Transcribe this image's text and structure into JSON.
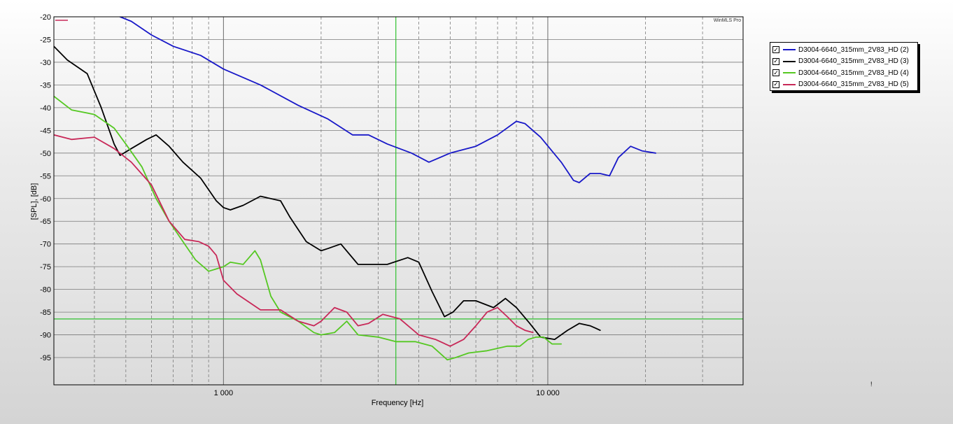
{
  "chart_data": {
    "type": "line",
    "title": "",
    "watermark": "WinMLS Pro",
    "xlabel": "Frequency [Hz]",
    "ylabel": "[SPL], [dB]",
    "xscale": "log",
    "xlim": [
      300,
      40000
    ],
    "ylim": [
      -101,
      -20
    ],
    "x_ticks": [
      {
        "value": 1000,
        "label": "1 000"
      },
      {
        "value": 10000,
        "label": "10 000"
      }
    ],
    "y_ticks": [
      -20,
      -25,
      -30,
      -35,
      -40,
      -45,
      -50,
      -55,
      -60,
      -65,
      -70,
      -75,
      -80,
      -85,
      -90,
      -95
    ],
    "grid": true,
    "cursor": {
      "x": 3400,
      "y": -86.5,
      "color": "#2ec12e"
    },
    "legend_position": "right",
    "series": [
      {
        "name": "D3004-6640_315mm_2V83_HD (2)",
        "color": "#1818c8",
        "checked": true,
        "x": [
          480,
          520,
          600,
          700,
          850,
          1000,
          1300,
          1700,
          2100,
          2500,
          2800,
          3200,
          3800,
          4300,
          5000,
          6000,
          7000,
          8000,
          8500,
          9500,
          11000,
          12000,
          12500,
          13500,
          14500,
          15500,
          16500,
          18000,
          19500,
          21500
        ],
        "y": [
          -20,
          -21,
          -24,
          -26.5,
          -28.5,
          -31.5,
          -35,
          -39.5,
          -42.5,
          -46,
          -46,
          -48,
          -50,
          -52,
          -50,
          -48.5,
          -46,
          -43,
          -43.5,
          -46.5,
          -52,
          -56,
          -56.5,
          -54.5,
          -54.5,
          -55,
          -51,
          -48.5,
          -49.5,
          -50
        ]
      },
      {
        "name": "D3004-6640_315mm_2V83_HD (3)",
        "color": "#000000",
        "checked": true,
        "x": [
          300,
          330,
          380,
          420,
          460,
          480,
          520,
          580,
          620,
          680,
          750,
          850,
          950,
          1000,
          1050,
          1150,
          1300,
          1500,
          1600,
          1800,
          2000,
          2100,
          2300,
          2600,
          2800,
          3200,
          3700,
          4000,
          4400,
          4800,
          5100,
          5500,
          6000,
          6800,
          7400,
          8000,
          8800,
          9500,
          10500,
          11500,
          12500,
          13500,
          14000,
          14500
        ],
        "y": [
          -26.5,
          -29.5,
          -32.5,
          -40,
          -48,
          -50.5,
          -49,
          -47,
          -46,
          -48.5,
          -52,
          -55.5,
          -60.5,
          -62,
          -62.5,
          -61.5,
          -59.5,
          -60.5,
          -64,
          -69.5,
          -71.5,
          -71,
          -70,
          -74.5,
          -74.5,
          -74.5,
          -73,
          -74,
          -80.5,
          -86,
          -85,
          -82.5,
          -82.5,
          -84,
          -82,
          -84,
          -87.5,
          -90.5,
          -91,
          -89,
          -87.5,
          -88,
          -88.5,
          -89
        ]
      },
      {
        "name": "D3004-6640_315mm_2V83_HD (4)",
        "color": "#55c822",
        "checked": true,
        "x": [
          300,
          340,
          400,
          460,
          500,
          560,
          620,
          680,
          750,
          820,
          900,
          950,
          1000,
          1050,
          1150,
          1250,
          1300,
          1400,
          1500,
          1700,
          1900,
          2000,
          2200,
          2400,
          2600,
          3000,
          3400,
          3900,
          4400,
          4900,
          5200,
          5700,
          6500,
          7500,
          8200,
          8700,
          9200,
          9700,
          10300,
          11000
        ],
        "y": [
          -37.5,
          -40.5,
          -41.5,
          -44.5,
          -48,
          -53,
          -60,
          -65,
          -69.5,
          -73.5,
          -76,
          -75.5,
          -75,
          -74,
          -74.5,
          -71.5,
          -73.5,
          -81.5,
          -85,
          -87,
          -89.5,
          -90,
          -89.5,
          -87,
          -90,
          -90.5,
          -91.5,
          -91.5,
          -92.5,
          -95.5,
          -95,
          -94,
          -93.5,
          -92.5,
          -92.5,
          -91,
          -90.5,
          -90.5,
          -92,
          -92
        ]
      },
      {
        "name": "D3004-6640_315mm_2V83_HD (5)",
        "color": "#c82858",
        "checked": true,
        "x": [
          300,
          340,
          400,
          460,
          520,
          600,
          680,
          760,
          840,
          900,
          950,
          1000,
          1100,
          1300,
          1500,
          1700,
          1900,
          2000,
          2200,
          2400,
          2600,
          2800,
          3100,
          3500,
          4000,
          4500,
          5000,
          5500,
          6000,
          6500,
          7000,
          7500,
          8000,
          8500,
          9000
        ],
        "y": [
          -46,
          -47,
          -46.5,
          -49,
          -52,
          -57,
          -65,
          -69,
          -69.5,
          -70.5,
          -72.5,
          -78,
          -81,
          -84.5,
          -84.5,
          -87,
          -88,
          -87,
          -84,
          -85,
          -88,
          -87.5,
          -85.5,
          -86.5,
          -90,
          -91,
          -92.5,
          -91,
          -88,
          -85,
          -84,
          -86,
          -88,
          -89,
          -89.5
        ]
      }
    ]
  },
  "corner_mark": "!"
}
